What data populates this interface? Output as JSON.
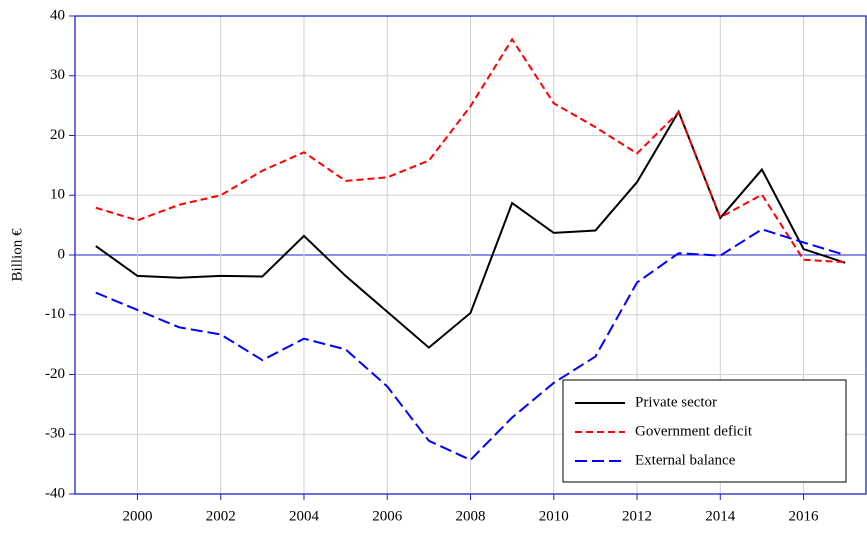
{
  "chart_data": {
    "type": "line",
    "y_label": "Billion €",
    "x": [
      1999,
      2000,
      2001,
      2002,
      2003,
      2004,
      2005,
      2006,
      2007,
      2008,
      2009,
      2010,
      2011,
      2012,
      2013,
      2014,
      2015,
      2016,
      2017
    ],
    "series": [
      {
        "name": "Private sector",
        "color": "#000000",
        "dash": "none",
        "values": [
          1.5,
          -3.5,
          -3.8,
          -3.5,
          -3.6,
          3.2,
          -3.5,
          -9.5,
          -15.5,
          -9.7,
          8.7,
          3.7,
          4.1,
          12.2,
          24,
          6.2,
          14.3,
          1,
          -1.3
        ]
      },
      {
        "name": "Government deficit",
        "color": "#ff0000",
        "dash": "7 4",
        "values": [
          7.9,
          5.8,
          8.4,
          10,
          14.1,
          17.2,
          12.4,
          13,
          15.8,
          24.9,
          36.1,
          25.4,
          21.4,
          17,
          23.9,
          6.3,
          10.1,
          -0.8,
          -1.2
        ]
      },
      {
        "name": "External balance",
        "color": "#0000ff",
        "dash": "12 5",
        "values": [
          -6.3,
          -9.2,
          -12.1,
          -13.3,
          -17.6,
          -14,
          -15.8,
          -22,
          -31.1,
          -34.3,
          -27.2,
          -21.4,
          -17,
          -4.6,
          0.3,
          -0.1,
          4.3,
          2.1,
          0
        ]
      }
    ],
    "xlim": [
      1998.5,
      2017.5
    ],
    "xticks": [
      2000,
      2002,
      2004,
      2006,
      2008,
      2010,
      2012,
      2014,
      2016
    ],
    "ylim": [
      -40,
      40
    ],
    "yticks": [
      -40,
      -30,
      -20,
      -10,
      0,
      10,
      20,
      30,
      40
    ],
    "grid": true,
    "legend": "lower right",
    "axis_color": "#2020d0"
  }
}
